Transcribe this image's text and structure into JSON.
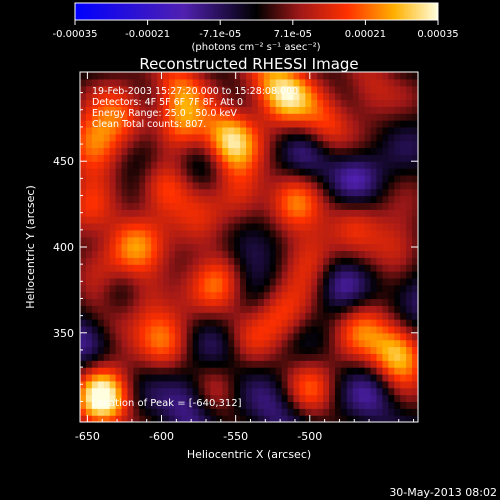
{
  "chart_data": {
    "type": "heatmap",
    "title": "Reconstructed RHESSI Image",
    "xlabel": "Heliocentric X (arcsec)",
    "ylabel": "Heliocentric Y (arcsec)",
    "xlim": [
      -655,
      -427
    ],
    "ylim": [
      298,
      502
    ],
    "x_ticks": [
      -650,
      -600,
      -550,
      -500
    ],
    "y_ticks": [
      350,
      400,
      450
    ],
    "colorbar": {
      "min": -0.00035,
      "max": 0.00035,
      "ticks": [
        "-0.00035",
        "-0.00021",
        "-7.1e-05",
        "7.1e-05",
        "0.00021",
        "0.00035"
      ],
      "unit_label": "(photons cm⁻² s⁻¹ asec⁻²)"
    },
    "info_lines": [
      "19-Feb-2003 15:27:20.000 to 15:28:08.000",
      "Detectors: 4F 5F 6F 7F 8F, Att 0",
      "Energy Range: 25.0 - 50.0 keV",
      "Clean     Total counts: 807."
    ],
    "peak_label": "Location of Peak = [-640,312]",
    "footer_date": "30-May-2013 08:02",
    "blobs": [
      {
        "x": -640,
        "y": 312,
        "v": 1.0
      },
      {
        "x": -645,
        "y": 460,
        "v": 0.8
      },
      {
        "x": -625,
        "y": 478,
        "v": 0.5
      },
      {
        "x": -555,
        "y": 462,
        "v": 0.9
      },
      {
        "x": -585,
        "y": 470,
        "v": 0.6
      },
      {
        "x": -600,
        "y": 435,
        "v": 0.65
      },
      {
        "x": -545,
        "y": 432,
        "v": 0.55
      },
      {
        "x": -515,
        "y": 488,
        "v": 0.7
      },
      {
        "x": -490,
        "y": 470,
        "v": 0.55
      },
      {
        "x": -510,
        "y": 425,
        "v": 0.5
      },
      {
        "x": -500,
        "y": 395,
        "v": 0.55
      },
      {
        "x": -470,
        "y": 420,
        "v": 0.45
      },
      {
        "x": -440,
        "y": 400,
        "v": 0.5
      },
      {
        "x": -440,
        "y": 338,
        "v": 0.95
      },
      {
        "x": -465,
        "y": 355,
        "v": 0.5
      },
      {
        "x": -520,
        "y": 360,
        "v": 0.45
      },
      {
        "x": -500,
        "y": 318,
        "v": 0.45
      },
      {
        "x": -560,
        "y": 380,
        "v": 0.55
      },
      {
        "x": -575,
        "y": 410,
        "v": 0.45
      },
      {
        "x": -610,
        "y": 372,
        "v": 0.5
      },
      {
        "x": -620,
        "y": 400,
        "v": 0.55
      },
      {
        "x": -640,
        "y": 388,
        "v": 0.4
      },
      {
        "x": -595,
        "y": 345,
        "v": 0.5
      },
      {
        "x": -565,
        "y": 318,
        "v": 0.4
      },
      {
        "x": -545,
        "y": 345,
        "v": 0.35
      },
      {
        "x": -635,
        "y": 355,
        "v": 0.35
      },
      {
        "x": -650,
        "y": 420,
        "v": 0.35
      },
      {
        "x": -590,
        "y": 495,
        "v": 0.5
      },
      {
        "x": -530,
        "y": 498,
        "v": 0.45
      },
      {
        "x": -460,
        "y": 492,
        "v": 0.4
      },
      {
        "x": -580,
        "y": 312,
        "v": -0.5
      },
      {
        "x": -630,
        "y": 375,
        "v": -0.45
      },
      {
        "x": -540,
        "y": 400,
        "v": -0.4
      },
      {
        "x": -470,
        "y": 440,
        "v": -0.45
      },
      {
        "x": -555,
        "y": 340,
        "v": -0.35
      },
      {
        "x": -430,
        "y": 370,
        "v": -0.4
      },
      {
        "x": -610,
        "y": 455,
        "v": -0.35
      },
      {
        "x": -520,
        "y": 305,
        "v": -0.3
      },
      {
        "x": -480,
        "y": 380,
        "v": -0.35
      },
      {
        "x": -570,
        "y": 445,
        "v": -0.3
      },
      {
        "x": -655,
        "y": 345,
        "v": -0.3
      },
      {
        "x": -500,
        "y": 455,
        "v": -0.3
      },
      {
        "x": -455,
        "y": 315,
        "v": -0.3
      }
    ]
  }
}
